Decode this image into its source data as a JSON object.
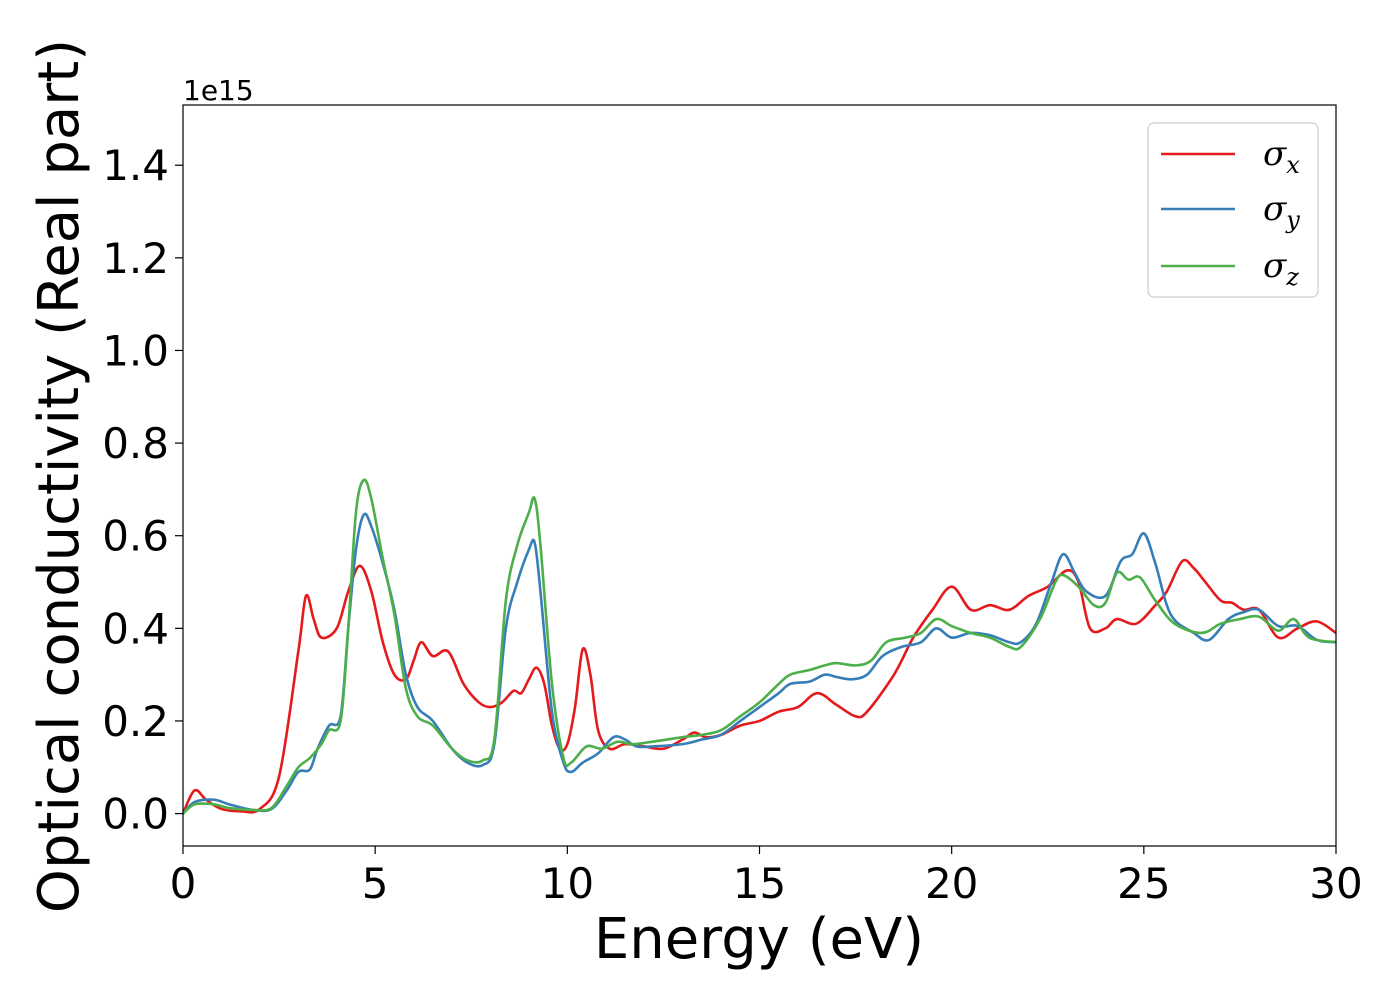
{
  "chart_data": {
    "type": "line",
    "xlabel": "Energy (eV)",
    "ylabel": "Optical conductivity (Real part)",
    "y_offset_label": "1e15",
    "xlim": [
      0,
      30
    ],
    "ylim": [
      -0.07,
      1.53
    ],
    "x_ticks": [
      0,
      5,
      10,
      15,
      20,
      25,
      30
    ],
    "x_tick_labels": [
      "0",
      "5",
      "10",
      "15",
      "20",
      "25",
      "30"
    ],
    "y_ticks": [
      0.0,
      0.2,
      0.4,
      0.6,
      0.8,
      1.0,
      1.2,
      1.4
    ],
    "y_tick_labels": [
      "0.0",
      "0.2",
      "0.4",
      "0.6",
      "0.8",
      "1.0",
      "1.2",
      "1.4"
    ],
    "grid": false,
    "legend_position": "top-right",
    "series": [
      {
        "name": "σ",
        "name_subscript": "x",
        "color": "#e41a1c",
        "points": [
          [
            0,
            0.0
          ],
          [
            0.3,
            0.05
          ],
          [
            0.6,
            0.03
          ],
          [
            1,
            0.01
          ],
          [
            1.5,
            0.005
          ],
          [
            2,
            0.01
          ],
          [
            2.5,
            0.08
          ],
          [
            3.0,
            0.35
          ],
          [
            3.2,
            0.47
          ],
          [
            3.4,
            0.42
          ],
          [
            3.6,
            0.38
          ],
          [
            4.0,
            0.4
          ],
          [
            4.3,
            0.48
          ],
          [
            4.6,
            0.535
          ],
          [
            4.9,
            0.48
          ],
          [
            5.2,
            0.37
          ],
          [
            5.5,
            0.3
          ],
          [
            5.8,
            0.29
          ],
          [
            6.0,
            0.33
          ],
          [
            6.2,
            0.37
          ],
          [
            6.5,
            0.34
          ],
          [
            6.9,
            0.35
          ],
          [
            7.3,
            0.28
          ],
          [
            7.7,
            0.24
          ],
          [
            8.0,
            0.23
          ],
          [
            8.3,
            0.24
          ],
          [
            8.6,
            0.265
          ],
          [
            8.8,
            0.26
          ],
          [
            9.0,
            0.29
          ],
          [
            9.2,
            0.315
          ],
          [
            9.4,
            0.28
          ],
          [
            9.6,
            0.19
          ],
          [
            9.8,
            0.14
          ],
          [
            10.0,
            0.15
          ],
          [
            10.2,
            0.23
          ],
          [
            10.4,
            0.355
          ],
          [
            10.6,
            0.3
          ],
          [
            10.8,
            0.18
          ],
          [
            11.1,
            0.14
          ],
          [
            11.5,
            0.15
          ],
          [
            12,
            0.145
          ],
          [
            12.5,
            0.14
          ],
          [
            13.0,
            0.16
          ],
          [
            13.3,
            0.175
          ],
          [
            13.6,
            0.165
          ],
          [
            14.0,
            0.17
          ],
          [
            14.5,
            0.19
          ],
          [
            15,
            0.2
          ],
          [
            15.5,
            0.22
          ],
          [
            16,
            0.23
          ],
          [
            16.5,
            0.26
          ],
          [
            17.0,
            0.235
          ],
          [
            17.5,
            0.21
          ],
          [
            17.8,
            0.22
          ],
          [
            18.5,
            0.3
          ],
          [
            19.0,
            0.38
          ],
          [
            19.5,
            0.44
          ],
          [
            20.0,
            0.49
          ],
          [
            20.5,
            0.44
          ],
          [
            21.0,
            0.45
          ],
          [
            21.5,
            0.44
          ],
          [
            22.0,
            0.47
          ],
          [
            22.5,
            0.49
          ],
          [
            23.0,
            0.525
          ],
          [
            23.3,
            0.5
          ],
          [
            23.6,
            0.4
          ],
          [
            24.0,
            0.4
          ],
          [
            24.3,
            0.42
          ],
          [
            24.8,
            0.41
          ],
          [
            25.3,
            0.45
          ],
          [
            25.6,
            0.48
          ],
          [
            26.0,
            0.545
          ],
          [
            26.3,
            0.53
          ],
          [
            26.6,
            0.5
          ],
          [
            27.0,
            0.46
          ],
          [
            27.3,
            0.455
          ],
          [
            27.6,
            0.44
          ],
          [
            28.0,
            0.44
          ],
          [
            28.5,
            0.38
          ],
          [
            29.0,
            0.4
          ],
          [
            29.5,
            0.415
          ],
          [
            30,
            0.39
          ]
        ]
      },
      {
        "name": "σ",
        "name_subscript": "y",
        "color": "#377eb8",
        "points": [
          [
            0,
            0.0
          ],
          [
            0.3,
            0.025
          ],
          [
            0.8,
            0.03
          ],
          [
            1.2,
            0.02
          ],
          [
            1.8,
            0.008
          ],
          [
            2.3,
            0.01
          ],
          [
            2.7,
            0.05
          ],
          [
            3.0,
            0.09
          ],
          [
            3.3,
            0.095
          ],
          [
            3.5,
            0.14
          ],
          [
            3.8,
            0.19
          ],
          [
            4.1,
            0.21
          ],
          [
            4.3,
            0.4
          ],
          [
            4.5,
            0.57
          ],
          [
            4.7,
            0.645
          ],
          [
            4.9,
            0.62
          ],
          [
            5.2,
            0.54
          ],
          [
            5.5,
            0.44
          ],
          [
            5.8,
            0.3
          ],
          [
            6.1,
            0.23
          ],
          [
            6.5,
            0.2
          ],
          [
            7.0,
            0.14
          ],
          [
            7.4,
            0.11
          ],
          [
            7.8,
            0.105
          ],
          [
            8.1,
            0.15
          ],
          [
            8.4,
            0.4
          ],
          [
            8.7,
            0.5
          ],
          [
            9.0,
            0.57
          ],
          [
            9.15,
            0.585
          ],
          [
            9.3,
            0.48
          ],
          [
            9.6,
            0.22
          ],
          [
            9.9,
            0.11
          ],
          [
            10.1,
            0.09
          ],
          [
            10.4,
            0.11
          ],
          [
            10.8,
            0.13
          ],
          [
            11.2,
            0.165
          ],
          [
            11.5,
            0.16
          ],
          [
            11.8,
            0.145
          ],
          [
            12.2,
            0.145
          ],
          [
            13.0,
            0.15
          ],
          [
            13.5,
            0.16
          ],
          [
            14.0,
            0.17
          ],
          [
            14.5,
            0.2
          ],
          [
            15.0,
            0.23
          ],
          [
            15.5,
            0.26
          ],
          [
            15.8,
            0.28
          ],
          [
            16.3,
            0.285
          ],
          [
            16.7,
            0.3
          ],
          [
            17.0,
            0.295
          ],
          [
            17.4,
            0.29
          ],
          [
            17.8,
            0.3
          ],
          [
            18.2,
            0.34
          ],
          [
            18.7,
            0.36
          ],
          [
            19.2,
            0.37
          ],
          [
            19.6,
            0.4
          ],
          [
            20.0,
            0.38
          ],
          [
            20.5,
            0.39
          ],
          [
            21.0,
            0.385
          ],
          [
            21.5,
            0.37
          ],
          [
            21.8,
            0.37
          ],
          [
            22.2,
            0.41
          ],
          [
            22.6,
            0.5
          ],
          [
            22.9,
            0.56
          ],
          [
            23.2,
            0.52
          ],
          [
            23.5,
            0.48
          ],
          [
            24.0,
            0.47
          ],
          [
            24.4,
            0.545
          ],
          [
            24.7,
            0.56
          ],
          [
            25.0,
            0.605
          ],
          [
            25.3,
            0.54
          ],
          [
            25.7,
            0.43
          ],
          [
            26.3,
            0.39
          ],
          [
            26.7,
            0.375
          ],
          [
            27.2,
            0.42
          ],
          [
            27.6,
            0.435
          ],
          [
            28.0,
            0.44
          ],
          [
            28.5,
            0.405
          ],
          [
            29.0,
            0.405
          ],
          [
            29.5,
            0.375
          ],
          [
            30,
            0.37
          ]
        ]
      },
      {
        "name": "σ",
        "name_subscript": "z",
        "color": "#4daf4a",
        "points": [
          [
            0,
            0.0
          ],
          [
            0.3,
            0.02
          ],
          [
            0.8,
            0.02
          ],
          [
            1.2,
            0.012
          ],
          [
            1.8,
            0.008
          ],
          [
            2.3,
            0.012
          ],
          [
            2.7,
            0.06
          ],
          [
            3.0,
            0.1
          ],
          [
            3.3,
            0.12
          ],
          [
            3.6,
            0.15
          ],
          [
            3.8,
            0.18
          ],
          [
            4.1,
            0.2
          ],
          [
            4.3,
            0.4
          ],
          [
            4.5,
            0.65
          ],
          [
            4.7,
            0.72
          ],
          [
            4.9,
            0.68
          ],
          [
            5.2,
            0.55
          ],
          [
            5.5,
            0.43
          ],
          [
            5.8,
            0.27
          ],
          [
            6.1,
            0.21
          ],
          [
            6.5,
            0.19
          ],
          [
            7.0,
            0.14
          ],
          [
            7.4,
            0.115
          ],
          [
            7.8,
            0.115
          ],
          [
            8.1,
            0.16
          ],
          [
            8.4,
            0.46
          ],
          [
            8.7,
            0.58
          ],
          [
            9.0,
            0.65
          ],
          [
            9.15,
            0.68
          ],
          [
            9.3,
            0.58
          ],
          [
            9.6,
            0.28
          ],
          [
            9.9,
            0.12
          ],
          [
            10.1,
            0.11
          ],
          [
            10.5,
            0.145
          ],
          [
            10.9,
            0.14
          ],
          [
            11.3,
            0.155
          ],
          [
            11.7,
            0.15
          ],
          [
            12.2,
            0.155
          ],
          [
            13.0,
            0.165
          ],
          [
            13.5,
            0.17
          ],
          [
            14.0,
            0.18
          ],
          [
            14.5,
            0.21
          ],
          [
            15.0,
            0.24
          ],
          [
            15.5,
            0.28
          ],
          [
            15.8,
            0.3
          ],
          [
            16.3,
            0.31
          ],
          [
            16.7,
            0.32
          ],
          [
            17.0,
            0.325
          ],
          [
            17.5,
            0.32
          ],
          [
            17.9,
            0.33
          ],
          [
            18.3,
            0.37
          ],
          [
            18.8,
            0.38
          ],
          [
            19.2,
            0.39
          ],
          [
            19.6,
            0.42
          ],
          [
            20.0,
            0.405
          ],
          [
            20.5,
            0.39
          ],
          [
            21.0,
            0.38
          ],
          [
            21.5,
            0.36
          ],
          [
            21.8,
            0.36
          ],
          [
            22.3,
            0.42
          ],
          [
            22.7,
            0.5
          ],
          [
            22.9,
            0.515
          ],
          [
            23.3,
            0.49
          ],
          [
            23.7,
            0.45
          ],
          [
            24.0,
            0.455
          ],
          [
            24.3,
            0.52
          ],
          [
            24.6,
            0.505
          ],
          [
            24.9,
            0.51
          ],
          [
            25.3,
            0.46
          ],
          [
            25.8,
            0.41
          ],
          [
            26.5,
            0.39
          ],
          [
            27.0,
            0.41
          ],
          [
            27.5,
            0.42
          ],
          [
            28.0,
            0.425
          ],
          [
            28.5,
            0.395
          ],
          [
            28.9,
            0.42
          ],
          [
            29.3,
            0.38
          ],
          [
            30,
            0.37
          ]
        ]
      }
    ]
  }
}
